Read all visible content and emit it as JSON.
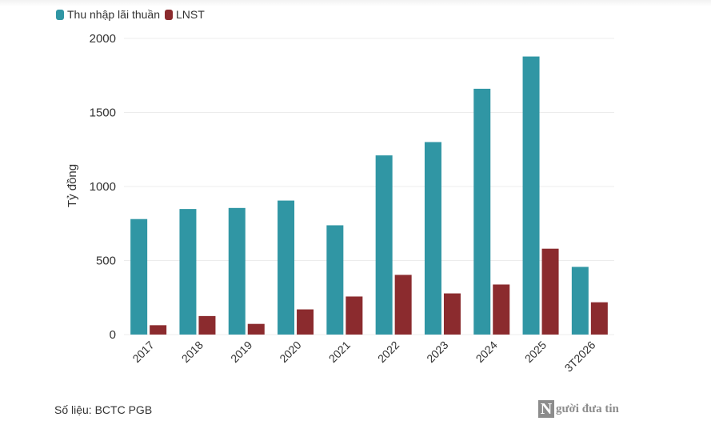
{
  "chart_data": {
    "type": "bar",
    "categories": [
      "2017",
      "2018",
      "2019",
      "2020",
      "2021",
      "2022",
      "2023",
      "2024",
      "2025",
      "3T2026"
    ],
    "series": [
      {
        "name": "Thu nhập lãi thuần",
        "color": "#3096a4",
        "values": [
          780,
          848,
          855,
          905,
          738,
          1210,
          1300,
          1660,
          1878,
          457
        ]
      },
      {
        "name": "LNST",
        "color": "#8b2b2e",
        "values": [
          63,
          125,
          72,
          170,
          257,
          403,
          278,
          338,
          580,
          218
        ]
      }
    ],
    "ylabel": "Tỷ đồng",
    "xlabel": "",
    "ylim": [
      0,
      2000
    ],
    "yticks": [
      "0",
      "500",
      "1000",
      "1500",
      "2000"
    ],
    "grid": true,
    "legend_position": "top-left"
  },
  "source_text": "Số liệu: BCTC PGB",
  "watermark": {
    "mark": "N",
    "text": "gười đưa tin"
  }
}
